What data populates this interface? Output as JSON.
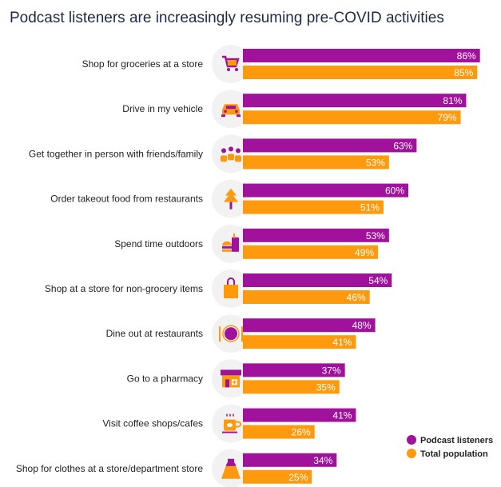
{
  "chart_data": {
    "type": "bar",
    "orientation": "horizontal",
    "title": "Podcast listeners are increasingly resuming pre-COVID activities",
    "categories": [
      "Shop for groceries at a store",
      "Drive in my vehicle",
      "Get together in person with friends/family",
      "Order takeout food from restaurants",
      "Spend time outdoors",
      "Shop at a store for non-grocery items",
      "Dine out at restaurants",
      "Go to a pharmacy",
      "Visit coffee shops/cafes",
      "Shop for clothes at a store/department store"
    ],
    "icons": [
      "shopping-cart-icon",
      "car-icon",
      "people-group-icon",
      "tree-icon",
      "fast-food-icon",
      "shopping-bag-icon",
      "dining-plate-icon",
      "storefront-icon",
      "coffee-cup-icon",
      "dress-icon"
    ],
    "series": [
      {
        "name": "Podcast listeners",
        "color": "#a0119c",
        "values": [
          86,
          81,
          63,
          60,
          53,
          54,
          48,
          37,
          41,
          34
        ],
        "labels": [
          "86%",
          "81%",
          "63%",
          "60%",
          "53%",
          "54%",
          "48%",
          "37%",
          "41%",
          "34%"
        ]
      },
      {
        "name": "Total population",
        "color": "#ff9a0e",
        "values": [
          85,
          79,
          53,
          51,
          49,
          46,
          41,
          35,
          26,
          25
        ],
        "labels": [
          "85%",
          "79%",
          "53%",
          "51%",
          "49%",
          "46%",
          "41%",
          "35%",
          "26%",
          "25%"
        ]
      }
    ],
    "xlim": [
      0,
      100
    ],
    "legend_position": "bottom-right",
    "grid": false
  }
}
